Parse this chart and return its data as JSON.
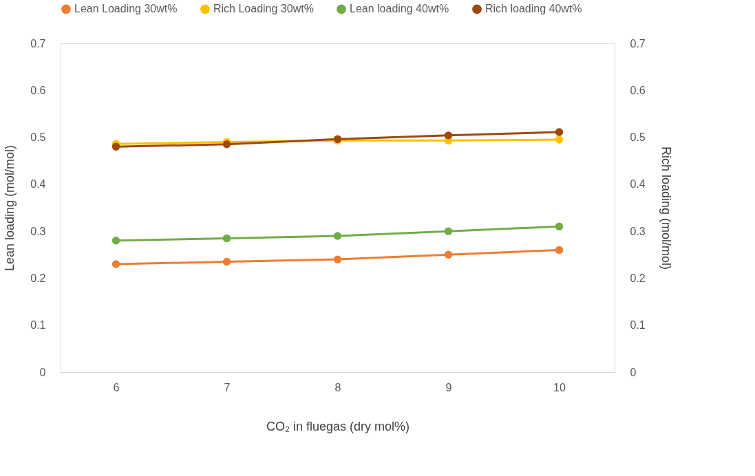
{
  "chart_data": {
    "type": "line",
    "xlabel": "CO₂ in fluegas (dry mol%)",
    "ylabel": "Lean loading (mol/mol)",
    "y2label": "Rich loading (mol/mol)",
    "categories": [
      "6",
      "7",
      "8",
      "9",
      "10"
    ],
    "series": [
      {
        "name": "Lean Loading 30wt%",
        "color": "#ed7d31",
        "values": [
          0.23,
          0.235,
          0.24,
          0.25,
          0.26
        ]
      },
      {
        "name": "Rich Loading 30wt%",
        "color": "#ffc000",
        "values": [
          0.486,
          0.49,
          0.493,
          0.493,
          0.495
        ]
      },
      {
        "name": "Lean loading 40wt%",
        "color": "#70ad47",
        "values": [
          0.28,
          0.285,
          0.29,
          0.3,
          0.31
        ]
      },
      {
        "name": "Rich loading 40wt%",
        "color": "#9e480e",
        "values": [
          0.48,
          0.485,
          0.496,
          0.504,
          0.511
        ]
      }
    ],
    "ylim": [
      0,
      0.7
    ],
    "yticks": [
      {
        "value": 0,
        "label": "0"
      },
      0.1,
      0.2,
      0.3,
      0.4,
      0.5,
      0.6,
      0.7
    ],
    "y2lim": [
      0,
      0.7
    ],
    "y2ticks": [
      {
        "value": 0,
        "label": "0"
      },
      0.1,
      0.2,
      0.3,
      0.4,
      0.5,
      0.6,
      0.7
    ],
    "legend": "top",
    "marker": "circle",
    "line_style": "solid"
  }
}
